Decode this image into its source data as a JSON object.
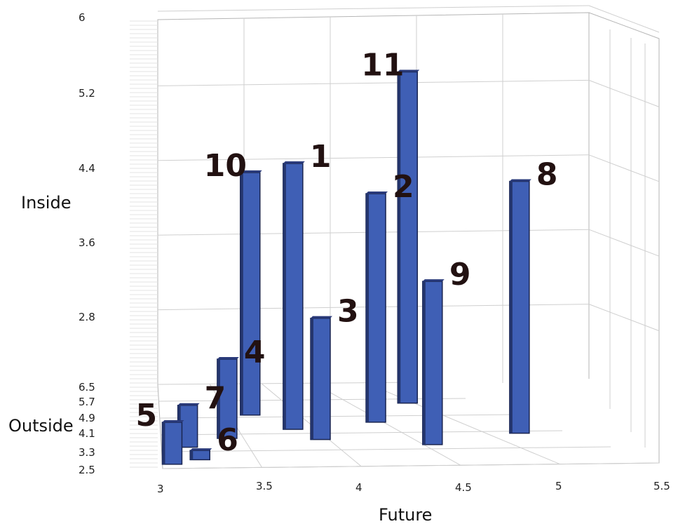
{
  "chart_data": {
    "type": "bar",
    "chart_subtype": "3d-bar",
    "xlabel": "Future",
    "ylabel": "Inside",
    "zlabel": "Outside",
    "x_ticks": [
      "3",
      "3.5",
      "4",
      "4.5",
      "5",
      "5.5"
    ],
    "y_ticks": [
      "6",
      "5.2",
      "4.4",
      "3.6",
      "2.8"
    ],
    "z_ticks": [
      "6.5",
      "5.7",
      "4.9",
      "4.1",
      "3.3",
      "2.5"
    ],
    "xlim": [
      3,
      5.5
    ],
    "ylim": [
      2,
      6
    ],
    "zlim": [
      2.5,
      6.5
    ],
    "bar_color": "#3f5fb5",
    "grid": true,
    "bars": [
      {
        "label": "1",
        "future": 3.85,
        "outside": 4.3,
        "inside": 4.85
      },
      {
        "label": "2",
        "future": 4.45,
        "outside": 4.6,
        "inside": 4.45
      },
      {
        "label": "3",
        "future": 3.95,
        "outside": 3.8,
        "inside": 3.3
      },
      {
        "label": "4",
        "future": 3.4,
        "outside": 3.9,
        "inside": 2.85
      },
      {
        "label": "5",
        "future": 3.05,
        "outside": 2.7,
        "inside": 2.45
      },
      {
        "label": "6",
        "future": 3.2,
        "outside": 2.9,
        "inside": 2.1
      },
      {
        "label": "7",
        "future": 3.15,
        "outside": 3.5,
        "inside": 2.45
      },
      {
        "label": "8",
        "future": 5.2,
        "outside": 4.0,
        "inside": 4.7
      },
      {
        "label": "9",
        "future": 4.55,
        "outside": 3.5,
        "inside": 3.75
      },
      {
        "label": "10",
        "future": 3.65,
        "outside": 5.0,
        "inside": 4.6
      },
      {
        "label": "11",
        "future": 4.95,
        "outside": 5.5,
        "inside": 5.55
      }
    ]
  }
}
